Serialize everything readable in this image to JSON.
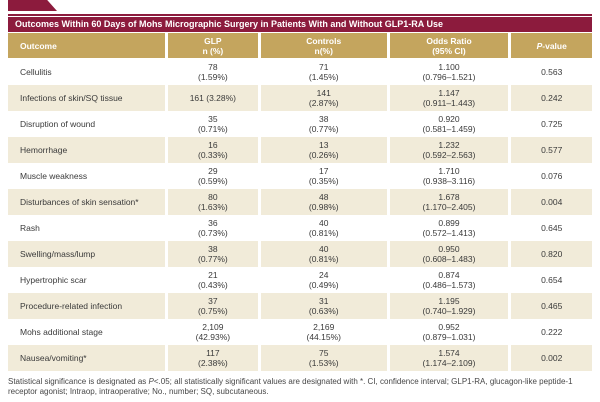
{
  "colors": {
    "maroon": "#8c1b3d",
    "gold": "#c4a55e",
    "row_shaded_cream": "#f1ebd9",
    "row_plain_white": "#ffffff",
    "body_text": "#3a3a3a"
  },
  "table": {
    "title": "Outcomes Within 60 Days of Mohs Micrographic Surgery in Patients With and Without GLP1-RA Use",
    "columns": {
      "outcome": "Outcome",
      "glp": "GLP\nn (%)",
      "controls": "Controls\nn(%)",
      "odds_ratio": "Odds Ratio\n(95% CI)",
      "p_italic": "P",
      "p_rest": "-value"
    },
    "rows": [
      {
        "outcome": "Cellulitis",
        "glp": "78\n(1.59%)",
        "controls": "71\n(1.45%)",
        "odds_ratio": "1.100\n(0.796–1.521)",
        "p_value": "0.563"
      },
      {
        "outcome": "Infections of skin/SQ tissue",
        "glp": "161 (3.28%)",
        "controls": "141\n(2.87%)",
        "odds_ratio": "1.147\n(0.911–1.443)",
        "p_value": "0.242"
      },
      {
        "outcome": "Disruption of wound",
        "glp": "35\n(0.71%)",
        "controls": "38\n(0.77%)",
        "odds_ratio": "0.920\n(0.581–1.459)",
        "p_value": "0.725"
      },
      {
        "outcome": "Hemorrhage",
        "glp": "16\n(0.33%)",
        "controls": "13\n(0.26%)",
        "odds_ratio": "1.232\n(0.592–2.563)",
        "p_value": "0.577"
      },
      {
        "outcome": "Muscle weakness",
        "glp": "29\n(0.59%)",
        "controls": "17\n(0.35%)",
        "odds_ratio": "1.710\n(0.938–3.116)",
        "p_value": "0.076"
      },
      {
        "outcome": "Disturbances of skin sensation*",
        "glp": "80\n(1.63%)",
        "controls": "48\n(0.98%)",
        "odds_ratio": "1.678\n(1.170–2.405)",
        "p_value": "0.004"
      },
      {
        "outcome": "Rash",
        "glp": "36\n(0.73%)",
        "controls": "40\n(0.81%)",
        "odds_ratio": "0.899\n(0.572–1.413)",
        "p_value": "0.645"
      },
      {
        "outcome": "Swelling/mass/lump",
        "glp": "38\n(0.77%)",
        "controls": "40\n(0.81%)",
        "odds_ratio": "0.950\n(0.608–1.483)",
        "p_value": "0.820"
      },
      {
        "outcome": "Hypertrophic scar",
        "glp": "21\n(0.43%)",
        "controls": "24\n(0.49%)",
        "odds_ratio": "0.874\n(0.486–1.573)",
        "p_value": "0.654"
      },
      {
        "outcome": "Procedure-related infection",
        "glp": "37\n(0.75%)",
        "controls": "31\n(0.63%)",
        "odds_ratio": "1.195\n(0.740–1.929)",
        "p_value": "0.465"
      },
      {
        "outcome": "Mohs additional stage",
        "glp": "2,109\n(42.93%)",
        "controls": "2,169\n(44.15%)",
        "odds_ratio": "0.952\n(0.879–1.031)",
        "p_value": "0.222"
      },
      {
        "outcome": "Nausea/vomiting*",
        "glp": "117\n(2.38%)",
        "controls": "75\n(1.53%)",
        "odds_ratio": "1.574\n(1.174–2.109)",
        "p_value": "0.002"
      }
    ]
  },
  "footnote": {
    "part1": "Statistical significance is designated as ",
    "p_italic": "P",
    "part2": "<.05; all statistically significant values are designated with *. CI, confidence interval; GLP1-RA, glucagon-like peptide-1 receptor agonist; Intraop, intraoperative; No., number; SQ, subcutaneous."
  }
}
